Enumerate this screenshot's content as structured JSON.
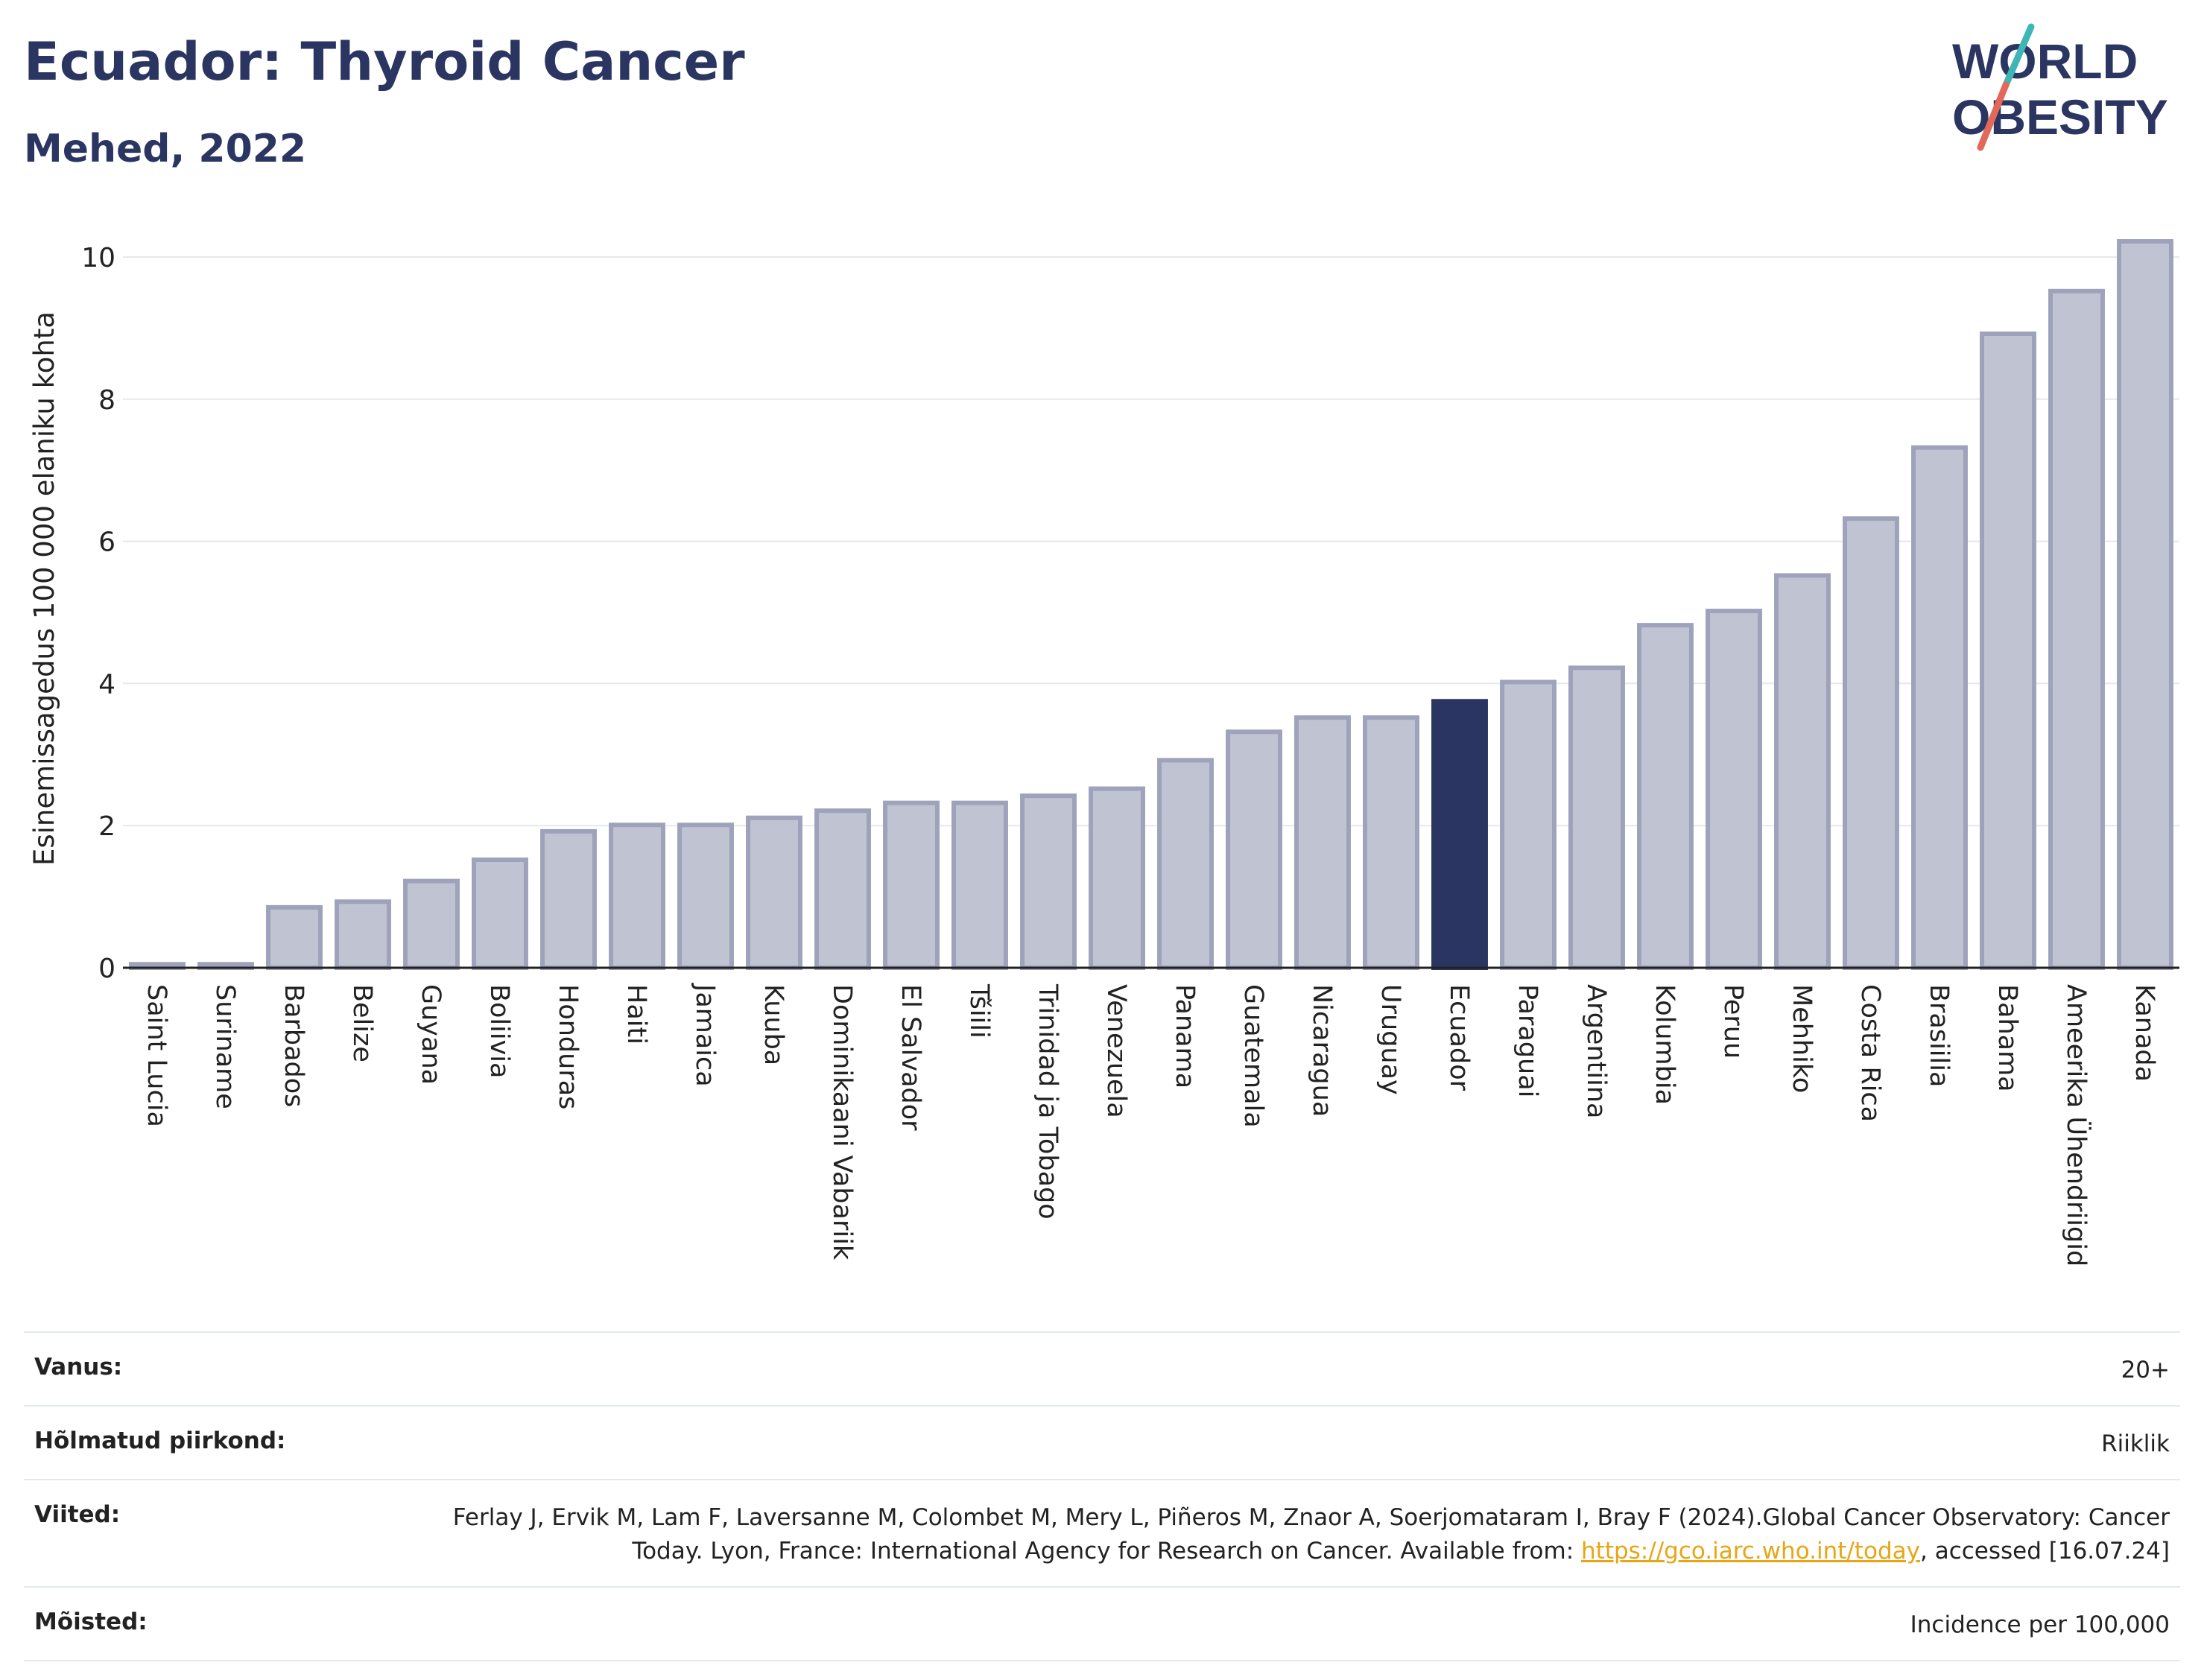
{
  "header": {
    "title": "Ecuador: Thyroid Cancer",
    "subtitle": "Mehed, 2022",
    "logo_line1": "WORLD",
    "logo_line2": "OBESITY"
  },
  "colors": {
    "bar": "#c0c3d2",
    "bar_border": "#9ea3bb",
    "highlight": "#2b3562",
    "grid": "#e6e8ee",
    "title": "#2b3562",
    "logo_slash_top": "#3fb6b5",
    "logo_slash_bottom": "#e2685a"
  },
  "chart_data": {
    "type": "bar",
    "ylabel": "Esinemissagedus 100 000 elaniku kohta",
    "ylim": [
      0,
      10.5
    ],
    "yticks": [
      0,
      2,
      4,
      6,
      8,
      10
    ],
    "grid": true,
    "highlight": "Ecuador",
    "categories": [
      "Saint Lucia",
      "Suriname",
      "Barbados",
      "Belize",
      "Guyana",
      "Boliivia",
      "Honduras",
      "Haiti",
      "Jamaica",
      "Kuuba",
      "Dominikaani Vabariik",
      "El Salvador",
      "Tšiili",
      "Trinidad ja Tobago",
      "Venezuela",
      "Panama",
      "Guatemala",
      "Nicaragua",
      "Uruguay",
      "Ecuador",
      "Paraguai",
      "Argentiina",
      "Kolumbia",
      "Peruu",
      "Mehhiko",
      "Costa Rica",
      "Brasiilia",
      "Bahama",
      "Ameerika Ühendriigid",
      "Kanada"
    ],
    "values": [
      0.05,
      0.05,
      0.85,
      0.93,
      1.22,
      1.52,
      1.92,
      2.01,
      2.01,
      2.11,
      2.21,
      2.32,
      2.32,
      2.42,
      2.52,
      2.92,
      3.32,
      3.52,
      3.52,
      3.75,
      4.02,
      4.22,
      4.82,
      5.02,
      5.52,
      6.32,
      7.32,
      8.92,
      9.52,
      10.22
    ]
  },
  "meta": [
    {
      "label": "Vanus:",
      "value": "20+"
    },
    {
      "label": "Hõlmatud piirkond:",
      "value": "Riiklik"
    },
    {
      "label": "Viited:",
      "value": "Ferlay J, Ervik M, Lam F, Laversanne M, Colombet M, Mery L, Piñeros M, Znaor A, Soerjomataram I, Bray F (2024).Global Cancer Observatory: Cancer Today. Lyon, France: International Agency for Research on Cancer. Available from: ",
      "link": "https://gco.iarc.who.int/today",
      "suffix": ", accessed [16.07.24]"
    },
    {
      "label": "Mõisted:",
      "value": "Incidence per 100,000"
    }
  ]
}
